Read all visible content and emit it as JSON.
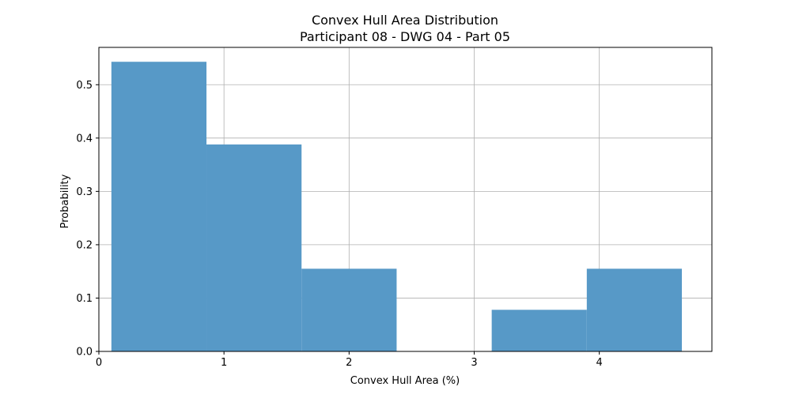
{
  "chart_data": {
    "type": "bar",
    "title": "Convex Hull Area Distribution",
    "subtitle": "Participant 08 - DWG 04 - Part 05",
    "xlabel": "Convex Hull Area (%)",
    "ylabel": "Probability",
    "xlim": [
      0,
      4.9
    ],
    "ylim": [
      0,
      0.57
    ],
    "grid": true,
    "bar_color": "#5799c7",
    "bins": [
      {
        "x0": 0.1,
        "x1": 0.86,
        "value": 0.543
      },
      {
        "x0": 0.86,
        "x1": 1.62,
        "value": 0.388
      },
      {
        "x0": 1.62,
        "x1": 2.38,
        "value": 0.155
      },
      {
        "x0": 2.38,
        "x1": 3.14,
        "value": 0.0
      },
      {
        "x0": 3.14,
        "x1": 3.9,
        "value": 0.078
      },
      {
        "x0": 3.9,
        "x1": 4.66,
        "value": 0.155
      }
    ],
    "x_ticks": [
      0,
      1,
      2,
      3,
      4
    ],
    "x_tick_labels": [
      "0",
      "1",
      "2",
      "3",
      "4"
    ],
    "y_ticks": [
      0.0,
      0.1,
      0.2,
      0.3,
      0.4,
      0.5
    ],
    "y_tick_labels": [
      "0.0",
      "0.1",
      "0.2",
      "0.3",
      "0.4",
      "0.5"
    ]
  }
}
